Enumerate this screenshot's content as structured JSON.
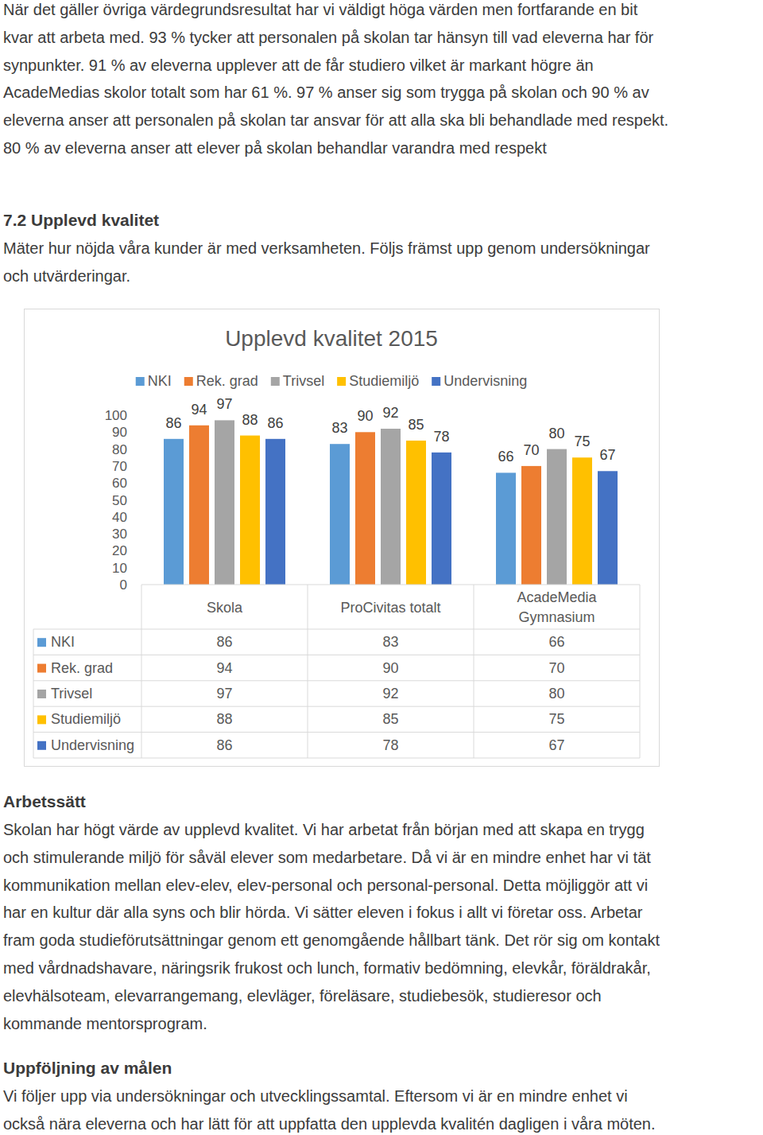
{
  "intro_lines": [
    "När det gäller övriga värdegrundsresultat har vi väldigt höga värden men fortfarande en bit",
    "kvar att arbeta med. 93 % tycker att personalen på skolan tar hänsyn till vad eleverna har för",
    "synpunkter. 91 % av eleverna upplever att de får studiero vilket är markant högre än",
    "AcadeMedias skolor totalt som har 61 %. 97 % anser sig som trygga på skolan och 90 % av",
    "eleverna anser att personalen på skolan tar ansvar för att alla ska bli behandlade med respekt.",
    "80 % av eleverna anser att elever på skolan behandlar varandra med respekt"
  ],
  "section_heading": "7.2 Upplevd kvalitet",
  "section_intro_lines": [
    "Mäter hur nöjda våra kunder är med verksamheten. Följs främst upp genom undersökningar",
    "och utvärderingar."
  ],
  "chart_data": {
    "type": "bar",
    "title": "Upplevd kvalitet 2015",
    "categories": [
      "Skola",
      "ProCivitas totalt",
      "AcadeMedia Gymnasium"
    ],
    "series": [
      {
        "name": "NKI",
        "color": "#5b9bd5",
        "values": [
          86,
          83,
          66
        ]
      },
      {
        "name": "Rek. grad",
        "color": "#ed7d31",
        "values": [
          94,
          90,
          70
        ]
      },
      {
        "name": "Trivsel",
        "color": "#a5a5a5",
        "values": [
          97,
          92,
          80
        ]
      },
      {
        "name": "Studiemiljö",
        "color": "#ffc000",
        "values": [
          88,
          85,
          75
        ]
      },
      {
        "name": "Undervisning",
        "color": "#4472c4",
        "values": [
          86,
          78,
          67
        ]
      }
    ],
    "ylim": [
      0,
      100
    ],
    "yticks": [
      0,
      10,
      20,
      30,
      40,
      50,
      60,
      70,
      80,
      90,
      100
    ],
    "grid": false,
    "legend": "top",
    "data_labels": true
  },
  "sections": [
    {
      "heading": "Arbetssätt",
      "lines": [
        "Skolan har högt värde av upplevd kvalitet. Vi har arbetat från början med att skapa en trygg",
        "och stimulerande miljö för såväl elever som medarbetare. Då vi är en mindre enhet har vi tät",
        "kommunikation mellan elev-elev, elev-personal och personal-personal. Detta möjliggör att vi",
        "har en kultur där alla syns och blir hörda. Vi sätter eleven i fokus i allt vi företar oss. Arbetar",
        "fram goda studieförutsättningar genom ett genomgående hållbart tänk. Det rör sig om kontakt",
        "med vårdnadshavare, näringsrik frukost och lunch, formativ bedömning, elevkår, föräldrakår,",
        "elevhälsoteam, elevarrangemang, elevläger, föreläsare, studiebesök, studieresor och",
        "kommande mentorsprogram."
      ]
    },
    {
      "heading": "Uppföljning av målen",
      "lines": [
        "Vi följer upp via undersökningar och utvecklingssamtal. Eftersom vi är en mindre enhet vi",
        "också nära eleverna och har lätt för att uppfatta den upplevda kvalitén dagligen i våra möten."
      ]
    }
  ]
}
